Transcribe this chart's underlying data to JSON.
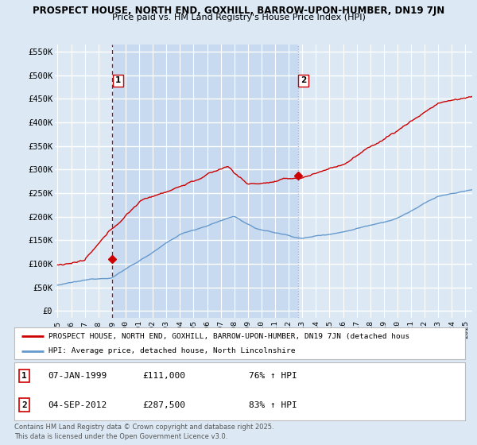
{
  "title1": "PROSPECT HOUSE, NORTH END, GOXHILL, BARROW-UPON-HUMBER, DN19 7JN",
  "title2": "Price paid vs. HM Land Registry's House Price Index (HPI)",
  "background_color": "#dce9f5",
  "plot_bg_color": "#dce9f5",
  "shaded_bg_color": "#c8daf0",
  "grid_color": "#ffffff",
  "yticks": [
    0,
    50000,
    100000,
    150000,
    200000,
    250000,
    300000,
    350000,
    400000,
    450000,
    500000,
    550000
  ],
  "ytick_labels": [
    "£0",
    "£50K",
    "£100K",
    "£150K",
    "£200K",
    "£250K",
    "£300K",
    "£350K",
    "£400K",
    "£450K",
    "£500K",
    "£550K"
  ],
  "xlim_start": 1994.8,
  "xlim_end": 2025.5,
  "sale1_x": 1999.03,
  "sale1_y": 111000,
  "sale1_label": "1",
  "sale2_x": 2012.67,
  "sale2_y": 287500,
  "sale2_label": "2",
  "vline1_x": 1999.03,
  "vline2_x": 2012.67,
  "red_color": "#cc0000",
  "blue_color": "#6699cc",
  "legend_label1": "PROSPECT HOUSE, NORTH END, GOXHILL, BARROW-UPON-HUMBER, DN19 7JN (detached hous",
  "legend_label2": "HPI: Average price, detached house, North Lincolnshire",
  "table_data": [
    {
      "num": "1",
      "date": "07-JAN-1999",
      "price": "£111,000",
      "hpi": "76% ↑ HPI"
    },
    {
      "num": "2",
      "date": "04-SEP-2012",
      "price": "£287,500",
      "hpi": "83% ↑ HPI"
    }
  ],
  "footnote": "Contains HM Land Registry data © Crown copyright and database right 2025.\nThis data is licensed under the Open Government Licence v3.0."
}
